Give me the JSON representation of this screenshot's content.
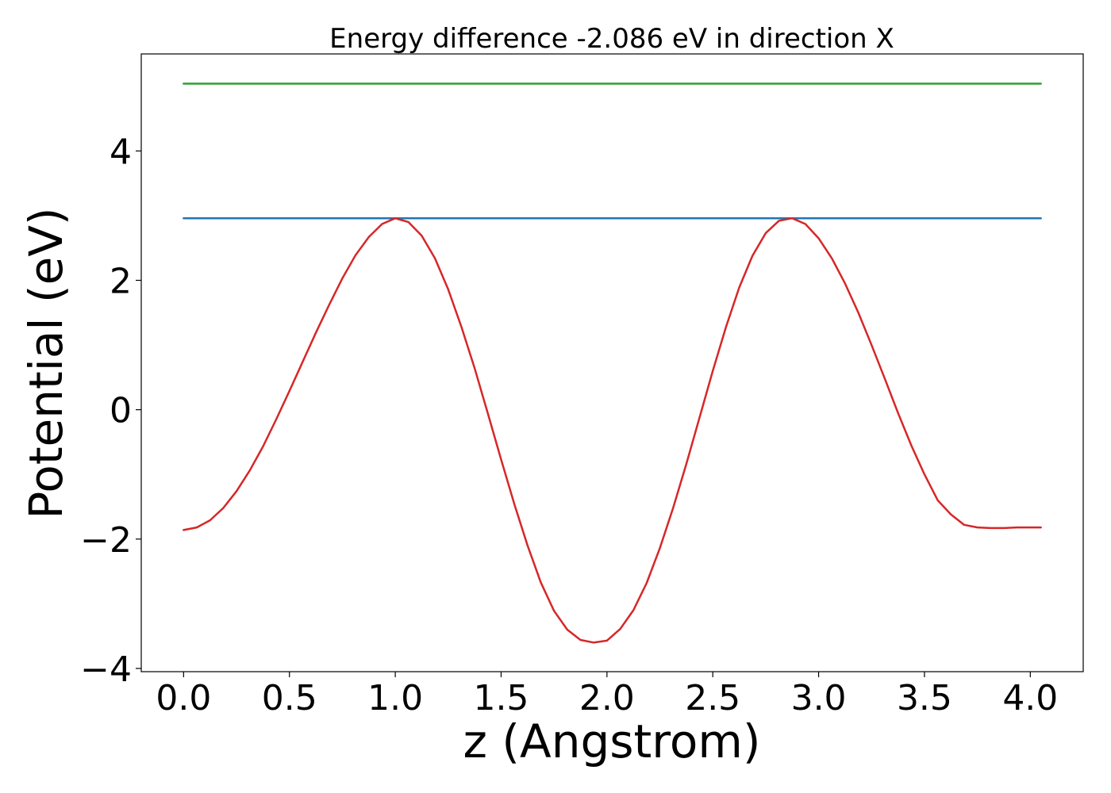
{
  "chart_data": {
    "type": "line",
    "title": "Energy difference -2.086 eV in direction X",
    "xlabel": "z (Angstrom)",
    "ylabel": "Potential (eV)",
    "xlim": [
      -0.2,
      4.25
    ],
    "ylim": [
      -4.05,
      5.5
    ],
    "x_ticks": [
      0.0,
      0.5,
      1.0,
      1.5,
      2.0,
      2.5,
      3.0,
      3.5,
      4.0
    ],
    "x_tick_labels": [
      "0.0",
      "0.5",
      "1.0",
      "1.5",
      "2.0",
      "2.5",
      "3.0",
      "3.5",
      "4.0"
    ],
    "y_ticks": [
      -4,
      -2,
      0,
      2,
      4
    ],
    "y_tick_labels": [
      "−4",
      "−2",
      "0",
      "2",
      "4"
    ],
    "grid": false,
    "series": [
      {
        "color": "#2ca02c",
        "x": [
          0.0,
          4.05
        ],
        "y": [
          5.04,
          5.04
        ]
      },
      {
        "color": "#1f77b4",
        "x": [
          0.0,
          4.05
        ],
        "y": [
          2.96,
          2.96
        ]
      },
      {
        "color": "#d62728",
        "x": [
          0.0,
          0.0625,
          0.125,
          0.1875,
          0.25,
          0.3125,
          0.375,
          0.4375,
          0.5,
          0.5625,
          0.625,
          0.6875,
          0.75,
          0.8125,
          0.875,
          0.9375,
          1.0,
          1.0625,
          1.125,
          1.1875,
          1.25,
          1.3125,
          1.375,
          1.4375,
          1.5,
          1.5625,
          1.625,
          1.6875,
          1.75,
          1.8125,
          1.875,
          1.9375,
          2.0,
          2.0625,
          2.125,
          2.1875,
          2.25,
          2.3125,
          2.375,
          2.4375,
          2.5,
          2.5625,
          2.625,
          2.6875,
          2.75,
          2.8125,
          2.875,
          2.9375,
          3.0,
          3.0625,
          3.125,
          3.1875,
          3.25,
          3.3125,
          3.375,
          3.4375,
          3.5,
          3.5625,
          3.625,
          3.6875,
          3.75,
          3.8125,
          3.875,
          3.9375,
          4.0,
          4.05
        ],
        "y": [
          -1.86,
          -1.82,
          -1.71,
          -1.52,
          -1.26,
          -0.94,
          -0.57,
          -0.15,
          0.29,
          0.74,
          1.19,
          1.62,
          2.03,
          2.39,
          2.67,
          2.87,
          2.96,
          2.9,
          2.69,
          2.34,
          1.86,
          1.28,
          0.64,
          -0.06,
          -0.77,
          -1.46,
          -2.1,
          -2.67,
          -3.11,
          -3.4,
          -3.56,
          -3.6,
          -3.57,
          -3.39,
          -3.1,
          -2.68,
          -2.14,
          -1.52,
          -0.84,
          -0.12,
          0.6,
          1.28,
          1.89,
          2.38,
          2.73,
          2.92,
          2.96,
          2.87,
          2.65,
          2.34,
          1.95,
          1.5,
          1.0,
          0.48,
          -0.05,
          -0.55,
          -1.0,
          -1.4,
          -1.62,
          -1.78,
          -1.82,
          -1.83,
          -1.83,
          -1.82,
          -1.82,
          -1.82
        ]
      }
    ]
  }
}
